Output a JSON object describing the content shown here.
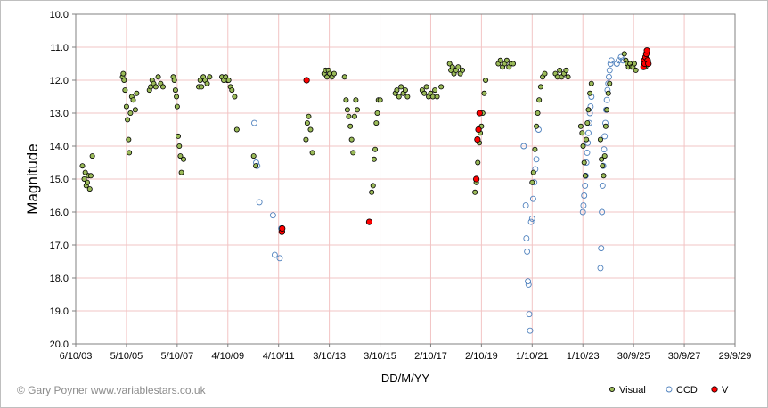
{
  "chart_data": {
    "type": "scatter",
    "title": "",
    "xlabel": "DD/M/YY",
    "ylabel": "Magnitude",
    "credit": "© Gary Poyner  www.variablestars.co.uk",
    "x_tick_labels": [
      "6/10/03",
      "5/10/05",
      "5/10/07",
      "4/10/09",
      "4/10/11",
      "3/10/13",
      "3/10/15",
      "2/10/17",
      "2/10/19",
      "1/10/21",
      "1/10/23",
      "30/9/25",
      "30/9/27",
      "29/9/29"
    ],
    "x_tick_dates": [
      "2003-10-06",
      "2005-10-05",
      "2007-10-05",
      "2009-10-04",
      "2011-10-04",
      "2013-10-03",
      "2015-10-03",
      "2017-10-02",
      "2019-10-02",
      "2021-10-01",
      "2023-10-01",
      "2025-09-30",
      "2027-09-30",
      "2029-09-29"
    ],
    "x_range": [
      "2003-10-06",
      "2029-09-29"
    ],
    "y_tick_labels": [
      "10.0",
      "11.0",
      "12.0",
      "13.0",
      "14.0",
      "15.0",
      "16.0",
      "17.0",
      "18.0",
      "19.0",
      "20.0"
    ],
    "y_range": [
      10.0,
      20.0
    ],
    "y_inverted": true,
    "grid": true,
    "legend_position": "bottom-right",
    "legend_items": [
      "Visual",
      "CCD",
      "V"
    ],
    "colors": {
      "visual_fill": "#9bbb59",
      "visual_stroke": "#000000",
      "ccd_stroke": "#4f81bd",
      "v_fill": "#ff0000",
      "v_stroke": "#000000",
      "grid": "#f2c4c4"
    },
    "series": [
      {
        "name": "Visual",
        "marker": "filled-circle-olive",
        "points": [
          [
            "2004-01-10",
            14.6
          ],
          [
            "2004-02-05",
            15.0
          ],
          [
            "2004-02-20",
            14.8
          ],
          [
            "2004-03-05",
            15.2
          ],
          [
            "2004-03-20",
            15.1
          ],
          [
            "2004-04-05",
            14.9
          ],
          [
            "2004-04-25",
            15.3
          ],
          [
            "2004-05-10",
            14.9
          ],
          [
            "2004-06-01",
            14.3
          ],
          [
            "2005-08-10",
            11.9
          ],
          [
            "2005-08-20",
            11.8
          ],
          [
            "2005-09-01",
            12.0
          ],
          [
            "2005-09-15",
            12.3
          ],
          [
            "2005-10-05",
            12.8
          ],
          [
            "2005-10-20",
            13.2
          ],
          [
            "2005-11-05",
            13.8
          ],
          [
            "2005-11-15",
            14.2
          ],
          [
            "2005-12-01",
            13.0
          ],
          [
            "2005-12-20",
            12.5
          ],
          [
            "2006-01-10",
            12.6
          ],
          [
            "2006-02-10",
            12.9
          ],
          [
            "2006-03-01",
            12.4
          ],
          [
            "2006-09-01",
            12.3
          ],
          [
            "2006-09-20",
            12.2
          ],
          [
            "2006-10-10",
            12.0
          ],
          [
            "2006-11-01",
            12.1
          ],
          [
            "2006-12-01",
            12.2
          ],
          [
            "2007-01-05",
            11.9
          ],
          [
            "2007-02-10",
            12.1
          ],
          [
            "2007-03-15",
            12.2
          ],
          [
            "2007-08-10",
            11.9
          ],
          [
            "2007-08-25",
            12.0
          ],
          [
            "2007-09-10",
            12.3
          ],
          [
            "2007-09-25",
            12.5
          ],
          [
            "2007-10-05",
            12.8
          ],
          [
            "2007-10-20",
            13.7
          ],
          [
            "2007-11-05",
            14.0
          ],
          [
            "2007-11-20",
            14.3
          ],
          [
            "2007-12-05",
            14.8
          ],
          [
            "2008-01-05",
            14.4
          ],
          [
            "2008-08-10",
            12.2
          ],
          [
            "2008-09-01",
            12.0
          ],
          [
            "2008-09-20",
            12.2
          ],
          [
            "2008-10-15",
            11.9
          ],
          [
            "2008-11-10",
            12.0
          ],
          [
            "2008-12-10",
            12.1
          ],
          [
            "2009-01-15",
            11.9
          ],
          [
            "2009-07-10",
            11.9
          ],
          [
            "2009-08-05",
            12.0
          ],
          [
            "2009-09-01",
            11.9
          ],
          [
            "2009-09-25",
            12.0
          ],
          [
            "2009-10-15",
            12.0
          ],
          [
            "2009-11-10",
            12.2
          ],
          [
            "2009-12-01",
            12.3
          ],
          [
            "2010-01-10",
            12.5
          ],
          [
            "2010-02-10",
            13.5
          ],
          [
            "2010-10-10",
            14.3
          ],
          [
            "2010-11-10",
            14.6
          ],
          [
            "2012-11-01",
            13.8
          ],
          [
            "2012-11-20",
            13.3
          ],
          [
            "2012-12-10",
            13.1
          ],
          [
            "2013-01-05",
            13.5
          ],
          [
            "2013-02-01",
            14.2
          ],
          [
            "2013-07-20",
            11.8
          ],
          [
            "2013-08-10",
            11.7
          ],
          [
            "2013-09-01",
            11.9
          ],
          [
            "2013-09-20",
            11.7
          ],
          [
            "2013-10-10",
            11.8
          ],
          [
            "2013-11-10",
            11.9
          ],
          [
            "2013-12-10",
            11.8
          ],
          [
            "2014-05-10",
            11.9
          ],
          [
            "2014-06-01",
            12.6
          ],
          [
            "2014-06-20",
            12.9
          ],
          [
            "2014-07-10",
            13.1
          ],
          [
            "2014-08-01",
            13.4
          ],
          [
            "2014-08-20",
            13.8
          ],
          [
            "2014-09-10",
            14.2
          ],
          [
            "2014-10-01",
            13.1
          ],
          [
            "2014-10-20",
            12.6
          ],
          [
            "2014-11-10",
            12.9
          ],
          [
            "2015-06-05",
            15.4
          ],
          [
            "2015-06-25",
            15.2
          ],
          [
            "2015-07-10",
            14.4
          ],
          [
            "2015-07-25",
            14.1
          ],
          [
            "2015-08-10",
            13.3
          ],
          [
            "2015-08-25",
            13.0
          ],
          [
            "2015-09-10",
            12.6
          ],
          [
            "2015-10-05",
            12.6
          ],
          [
            "2016-05-10",
            12.4
          ],
          [
            "2016-06-01",
            12.3
          ],
          [
            "2016-07-01",
            12.5
          ],
          [
            "2016-08-01",
            12.2
          ],
          [
            "2016-09-01",
            12.4
          ],
          [
            "2016-10-01",
            12.3
          ],
          [
            "2016-11-01",
            12.5
          ],
          [
            "2017-06-01",
            12.3
          ],
          [
            "2017-07-01",
            12.4
          ],
          [
            "2017-08-01",
            12.2
          ],
          [
            "2017-09-01",
            12.5
          ],
          [
            "2017-10-01",
            12.4
          ],
          [
            "2017-11-01",
            12.5
          ],
          [
            "2017-12-01",
            12.3
          ],
          [
            "2018-01-01",
            12.5
          ],
          [
            "2018-03-01",
            12.2
          ],
          [
            "2018-07-01",
            11.5
          ],
          [
            "2018-07-20",
            11.7
          ],
          [
            "2018-08-10",
            11.6
          ],
          [
            "2018-09-01",
            11.8
          ],
          [
            "2018-10-01",
            11.7
          ],
          [
            "2018-11-01",
            11.6
          ],
          [
            "2018-12-01",
            11.8
          ],
          [
            "2019-01-01",
            11.7
          ],
          [
            "2019-07-01",
            15.4
          ],
          [
            "2019-07-20",
            15.1
          ],
          [
            "2019-08-10",
            14.5
          ],
          [
            "2019-09-01",
            13.9
          ],
          [
            "2019-09-15",
            13.6
          ],
          [
            "2019-10-02",
            13.4
          ],
          [
            "2019-10-20",
            13.0
          ],
          [
            "2019-11-10",
            12.4
          ],
          [
            "2019-12-01",
            12.0
          ],
          [
            "2020-06-01",
            11.5
          ],
          [
            "2020-07-01",
            11.4
          ],
          [
            "2020-08-01",
            11.6
          ],
          [
            "2020-09-01",
            11.5
          ],
          [
            "2020-10-01",
            11.4
          ],
          [
            "2020-11-01",
            11.6
          ],
          [
            "2020-12-01",
            11.5
          ],
          [
            "2021-01-01",
            11.5
          ],
          [
            "2021-10-01",
            15.1
          ],
          [
            "2021-10-20",
            14.8
          ],
          [
            "2021-11-10",
            14.1
          ],
          [
            "2021-12-01",
            13.4
          ],
          [
            "2021-12-20",
            13.0
          ],
          [
            "2022-01-10",
            12.6
          ],
          [
            "2022-02-01",
            12.2
          ],
          [
            "2022-03-01",
            11.9
          ],
          [
            "2022-04-01",
            11.8
          ],
          [
            "2022-09-01",
            11.8
          ],
          [
            "2022-10-01",
            11.9
          ],
          [
            "2022-11-01",
            11.7
          ],
          [
            "2022-12-01",
            11.9
          ],
          [
            "2023-01-01",
            11.8
          ],
          [
            "2023-02-01",
            11.7
          ],
          [
            "2023-03-01",
            11.9
          ],
          [
            "2023-09-01",
            13.4
          ],
          [
            "2023-09-20",
            13.6
          ],
          [
            "2023-10-05",
            14.0
          ],
          [
            "2023-10-20",
            14.5
          ],
          [
            "2023-11-05",
            14.9
          ],
          [
            "2023-11-20",
            13.8
          ],
          [
            "2023-12-05",
            13.3
          ],
          [
            "2023-12-20",
            12.9
          ],
          [
            "2024-01-10",
            12.4
          ],
          [
            "2024-02-01",
            12.1
          ],
          [
            "2024-06-10",
            13.8
          ],
          [
            "2024-06-25",
            14.4
          ],
          [
            "2024-07-10",
            14.6
          ],
          [
            "2024-07-25",
            14.9
          ],
          [
            "2024-08-10",
            14.3
          ],
          [
            "2024-08-25",
            13.4
          ],
          [
            "2024-09-10",
            12.9
          ],
          [
            "2024-10-01",
            12.4
          ],
          [
            "2024-10-20",
            12.1
          ],
          [
            "2025-05-20",
            11.2
          ],
          [
            "2025-06-10",
            11.4
          ],
          [
            "2025-07-01",
            11.5
          ],
          [
            "2025-07-20",
            11.6
          ],
          [
            "2025-08-10",
            11.5
          ],
          [
            "2025-09-01",
            11.6
          ],
          [
            "2025-09-20",
            11.6
          ],
          [
            "2025-10-10",
            11.5
          ],
          [
            "2025-11-01",
            11.7
          ],
          [
            "2026-03-01",
            11.5
          ],
          [
            "2026-03-20",
            11.6
          ],
          [
            "2026-04-10",
            11.4
          ]
        ]
      },
      {
        "name": "CCD",
        "marker": "open-circle-blue",
        "points": [
          [
            "2010-10-20",
            13.3
          ],
          [
            "2010-11-15",
            14.5
          ],
          [
            "2010-12-01",
            14.6
          ],
          [
            "2011-01-01",
            15.7
          ],
          [
            "2011-07-15",
            16.1
          ],
          [
            "2011-08-10",
            17.3
          ],
          [
            "2011-10-20",
            17.4
          ],
          [
            "2011-11-10",
            16.5
          ],
          [
            "2021-06-01",
            14.0
          ],
          [
            "2021-07-01",
            15.8
          ],
          [
            "2021-07-10",
            16.8
          ],
          [
            "2021-07-20",
            17.2
          ],
          [
            "2021-08-01",
            18.1
          ],
          [
            "2021-08-10",
            18.2
          ],
          [
            "2021-08-20",
            19.1
          ],
          [
            "2021-09-01",
            19.6
          ],
          [
            "2021-09-15",
            16.3
          ],
          [
            "2021-10-01",
            16.2
          ],
          [
            "2021-10-15",
            15.6
          ],
          [
            "2021-11-01",
            15.1
          ],
          [
            "2021-11-15",
            14.7
          ],
          [
            "2021-12-01",
            14.4
          ],
          [
            "2022-01-01",
            13.5
          ],
          [
            "2023-10-01",
            16.0
          ],
          [
            "2023-10-10",
            15.8
          ],
          [
            "2023-10-20",
            15.5
          ],
          [
            "2023-11-01",
            15.2
          ],
          [
            "2023-11-10",
            14.9
          ],
          [
            "2023-11-20",
            14.5
          ],
          [
            "2023-12-01",
            14.2
          ],
          [
            "2023-12-10",
            13.9
          ],
          [
            "2023-12-20",
            13.6
          ],
          [
            "2024-01-01",
            13.3
          ],
          [
            "2024-01-10",
            13.0
          ],
          [
            "2024-01-20",
            12.8
          ],
          [
            "2024-02-01",
            12.5
          ],
          [
            "2024-06-10",
            17.7
          ],
          [
            "2024-06-20",
            17.1
          ],
          [
            "2024-07-01",
            16.0
          ],
          [
            "2024-07-10",
            15.2
          ],
          [
            "2024-07-20",
            14.6
          ],
          [
            "2024-08-01",
            14.1
          ],
          [
            "2024-08-10",
            13.7
          ],
          [
            "2024-08-20",
            13.3
          ],
          [
            "2024-09-01",
            12.9
          ],
          [
            "2024-09-10",
            12.6
          ],
          [
            "2024-09-20",
            12.3
          ],
          [
            "2024-10-01",
            12.1
          ],
          [
            "2024-10-10",
            11.9
          ],
          [
            "2024-10-20",
            11.7
          ],
          [
            "2024-11-01",
            11.5
          ],
          [
            "2024-11-15",
            11.4
          ],
          [
            "2025-02-01",
            11.5
          ],
          [
            "2025-03-01",
            11.4
          ],
          [
            "2025-04-01",
            11.3
          ],
          [
            "2025-05-01",
            11.4
          ]
        ]
      },
      {
        "name": "V",
        "marker": "filled-circle-red",
        "points": [
          [
            "2011-11-20",
            16.6
          ],
          [
            "2011-11-25",
            16.5
          ],
          [
            "2012-11-10",
            12.0
          ],
          [
            "2015-05-01",
            16.3
          ],
          [
            "2019-07-20",
            15.0
          ],
          [
            "2019-08-05",
            13.8
          ],
          [
            "2019-08-20",
            13.5
          ],
          [
            "2019-09-05",
            13.0
          ],
          [
            "2026-02-20",
            11.6
          ],
          [
            "2026-03-01",
            11.4
          ],
          [
            "2026-03-10",
            11.5
          ],
          [
            "2026-03-20",
            11.3
          ],
          [
            "2026-04-01",
            11.2
          ],
          [
            "2026-04-10",
            11.1
          ],
          [
            "2026-04-20",
            11.4
          ],
          [
            "2026-05-01",
            11.5
          ]
        ]
      }
    ]
  }
}
